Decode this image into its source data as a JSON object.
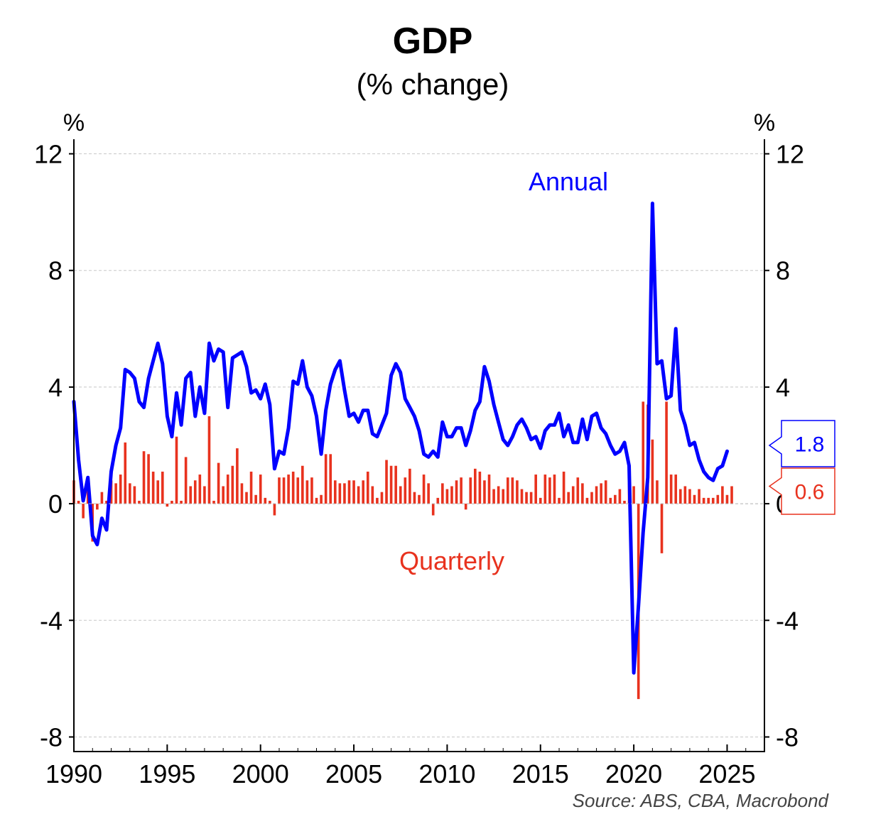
{
  "chart_data": {
    "type": "bar+line",
    "title": "GDP",
    "subtitle": "(% change)",
    "left_unit": "%",
    "right_unit": "%",
    "source": "Source: ABS, CBA, Macrobond",
    "ylim": [
      -8.5,
      12.5
    ],
    "xlim": [
      1990,
      2027
    ],
    "y_ticks": [
      12,
      8,
      4,
      0,
      -4,
      -8
    ],
    "x_ticks": [
      1990,
      1995,
      2000,
      2005,
      2010,
      2015,
      2020,
      2025
    ],
    "grid": true,
    "colors": {
      "annual": "#0000ff",
      "quarterly": "#e8321e"
    },
    "series": [
      {
        "name": "Annual",
        "type": "line",
        "start": 1990.0,
        "step": 0.25,
        "last_label": "1.8",
        "values": [
          3.5,
          1.5,
          0.1,
          0.9,
          -1.1,
          -1.4,
          -0.5,
          -0.9,
          1.1,
          2.0,
          2.6,
          4.6,
          4.5,
          4.3,
          3.5,
          3.3,
          4.3,
          4.9,
          5.5,
          4.8,
          3.0,
          2.3,
          3.8,
          2.7,
          4.3,
          4.5,
          3.0,
          4.0,
          3.1,
          5.5,
          4.9,
          5.3,
          5.2,
          3.3,
          5.0,
          5.1,
          5.2,
          4.7,
          3.8,
          3.9,
          3.6,
          4.1,
          3.4,
          1.2,
          1.8,
          1.7,
          2.6,
          4.2,
          4.1,
          4.9,
          4.0,
          3.7,
          3.0,
          1.7,
          3.2,
          4.1,
          4.6,
          4.9,
          3.9,
          3.0,
          3.1,
          2.8,
          3.2,
          3.2,
          2.4,
          2.3,
          2.7,
          3.1,
          4.4,
          4.8,
          4.5,
          3.6,
          3.3,
          3.0,
          2.5,
          1.7,
          1.6,
          1.8,
          1.6,
          2.8,
          2.3,
          2.3,
          2.6,
          2.6,
          2.0,
          2.5,
          3.2,
          3.5,
          4.7,
          4.2,
          3.4,
          2.8,
          2.2,
          2.0,
          2.3,
          2.7,
          2.9,
          2.6,
          2.2,
          2.3,
          1.9,
          2.5,
          2.7,
          2.7,
          3.1,
          2.3,
          2.7,
          2.1,
          2.1,
          2.9,
          2.2,
          3.0,
          3.1,
          2.6,
          2.4,
          2.0,
          1.7,
          1.8,
          2.1,
          1.3,
          -5.8,
          -3.5,
          -1.0,
          0.9,
          10.3,
          4.8,
          4.9,
          3.6,
          3.7,
          6.0,
          3.2,
          2.7,
          2.0,
          2.1,
          1.5,
          1.1,
          0.9,
          0.8,
          1.2,
          1.3,
          1.8
        ]
      },
      {
        "name": "Quarterly",
        "type": "bar",
        "start": 1990.0,
        "step": 0.25,
        "last_label": "0.6",
        "values": [
          0.8,
          0.1,
          -0.5,
          0.5,
          -1.3,
          -0.2,
          0.4,
          0.1,
          0.8,
          0.7,
          1.0,
          2.1,
          0.7,
          0.6,
          0.1,
          1.8,
          1.7,
          1.1,
          0.8,
          1.1,
          -0.1,
          0.1,
          2.3,
          0.1,
          1.6,
          0.6,
          0.8,
          1.0,
          0.6,
          3.0,
          0.1,
          1.4,
          0.6,
          1.0,
          1.3,
          1.9,
          0.7,
          0.4,
          1.1,
          0.3,
          1.0,
          0.2,
          0.1,
          -0.4,
          0.9,
          0.9,
          1.0,
          1.1,
          0.9,
          1.3,
          0.8,
          0.9,
          0.2,
          0.3,
          1.7,
          1.7,
          0.8,
          0.7,
          0.7,
          0.8,
          0.8,
          0.6,
          0.8,
          1.1,
          0.6,
          0.2,
          0.4,
          1.5,
          1.3,
          1.3,
          0.6,
          0.9,
          1.2,
          0.4,
          0.3,
          1.0,
          0.7,
          -0.4,
          0.2,
          0.7,
          0.5,
          0.6,
          0.8,
          0.9,
          -0.2,
          0.9,
          1.2,
          1.1,
          0.8,
          1.0,
          0.5,
          0.6,
          0.5,
          0.9,
          0.9,
          0.8,
          0.5,
          0.4,
          0.4,
          1.0,
          0.2,
          1.0,
          0.9,
          1.0,
          0.2,
          1.1,
          0.4,
          0.6,
          0.9,
          0.7,
          0.2,
          0.4,
          0.6,
          0.7,
          0.8,
          0.2,
          0.3,
          0.5,
          0.1,
          0.7,
          0.6,
          -6.7,
          3.5,
          3.4,
          2.2,
          0.8,
          -1.7,
          3.5,
          1.0,
          1.0,
          0.5,
          0.6,
          0.5,
          0.3,
          0.5,
          0.2,
          0.2,
          0.2,
          0.3,
          0.6,
          0.3,
          0.6
        ]
      }
    ]
  }
}
